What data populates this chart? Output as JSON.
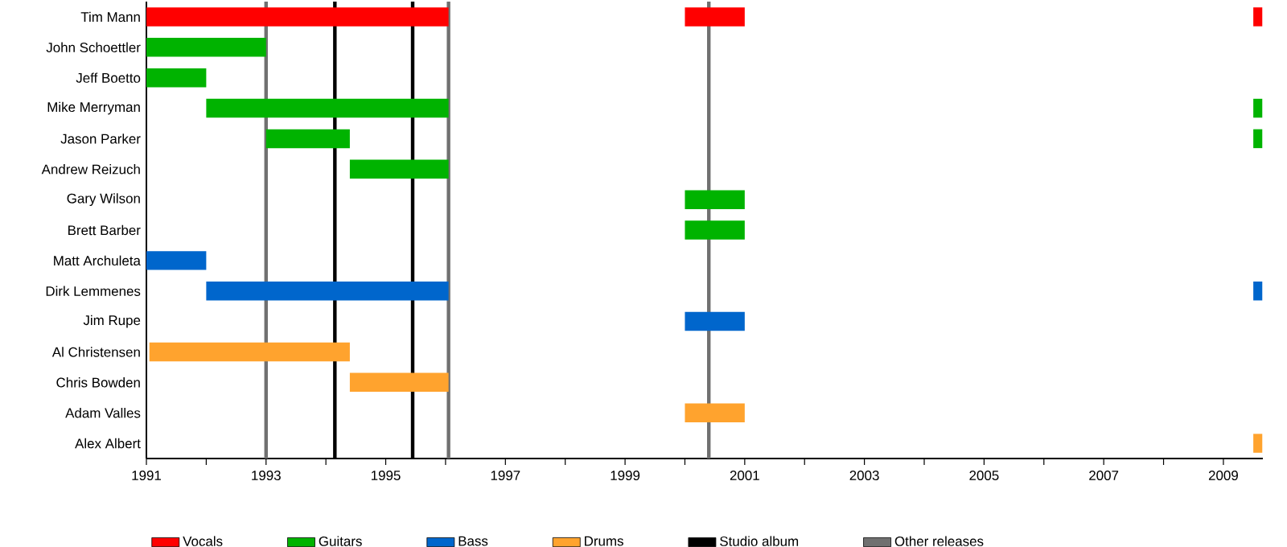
{
  "chart_data": {
    "type": "bar",
    "orientation": "horizontal",
    "categories": [
      "Tim Mann",
      "John Schoettler",
      "Jeff Boetto",
      "Mike Merryman",
      "Jason Parker",
      "Andrew Reizuch",
      "Gary Wilson",
      "Brett Barber",
      "Matt Archuleta",
      "Dirk Lemmenes",
      "Jim Rupe",
      "Al Christensen",
      "Chris Bowden",
      "Adam Valles",
      "Alex Albert"
    ],
    "series": [
      {
        "name": "Vocals",
        "color": "#ff0000",
        "base": [
          1991,
          null,
          null,
          null,
          null,
          null,
          null,
          null,
          null,
          null,
          null,
          null,
          null,
          null,
          null
        ],
        "values": [
          5.05,
          null,
          null,
          null,
          null,
          null,
          null,
          null,
          null,
          null,
          null,
          null,
          null,
          null,
          null
        ]
      },
      {
        "color": "#ff0000",
        "base": [
          2000,
          null,
          null,
          null,
          null,
          null,
          null,
          null,
          null,
          null,
          null,
          null,
          null,
          null,
          null
        ],
        "values": [
          1,
          null,
          null,
          null,
          null,
          null,
          null,
          null,
          null,
          null,
          null,
          null,
          null,
          null,
          null
        ]
      },
      {
        "color": "#ff0000",
        "base": [
          2009.5,
          null,
          null,
          null,
          null,
          null,
          null,
          null,
          null,
          null,
          null,
          null,
          null,
          null,
          null
        ],
        "values": [
          0.15,
          null,
          null,
          null,
          null,
          null,
          null,
          null,
          null,
          null,
          null,
          null,
          null,
          null,
          null
        ]
      },
      {
        "name": "Guitars",
        "color": "#00b300",
        "base": [
          null,
          1991,
          1991,
          1992,
          1993,
          1994.4,
          null,
          null,
          null,
          null,
          null,
          null,
          null,
          null,
          null
        ],
        "values": [
          null,
          2,
          1,
          4.05,
          1.4,
          1.65,
          null,
          null,
          null,
          null,
          null,
          null,
          null,
          null,
          null
        ]
      },
      {
        "color": "#00b300",
        "base": [
          null,
          null,
          null,
          null,
          null,
          null,
          2000,
          2000,
          null,
          null,
          null,
          null,
          null,
          null,
          null
        ],
        "values": [
          null,
          null,
          null,
          null,
          null,
          null,
          1,
          1,
          null,
          null,
          null,
          null,
          null,
          null,
          null
        ]
      },
      {
        "color": "#00b300",
        "base": [
          null,
          null,
          null,
          2009.5,
          2009.5,
          null,
          null,
          null,
          null,
          null,
          null,
          null,
          null,
          null,
          null
        ],
        "values": [
          null,
          null,
          null,
          0.15,
          0.15,
          null,
          null,
          null,
          null,
          null,
          null,
          null,
          null,
          null,
          null
        ]
      },
      {
        "name": "Bass",
        "color": "#0066cc",
        "base": [
          null,
          null,
          null,
          null,
          null,
          null,
          null,
          null,
          1991,
          1992,
          null,
          null,
          null,
          null,
          null
        ],
        "values": [
          null,
          null,
          null,
          null,
          null,
          null,
          null,
          null,
          1,
          4.05,
          null,
          null,
          null,
          null,
          null
        ]
      },
      {
        "color": "#0066cc",
        "base": [
          null,
          null,
          null,
          null,
          null,
          null,
          null,
          null,
          null,
          null,
          2000,
          null,
          null,
          null,
          null
        ],
        "values": [
          null,
          null,
          null,
          null,
          null,
          null,
          null,
          null,
          null,
          null,
          1,
          null,
          null,
          null,
          null
        ]
      },
      {
        "color": "#0066cc",
        "base": [
          null,
          null,
          null,
          null,
          null,
          null,
          null,
          null,
          null,
          2009.5,
          null,
          null,
          null,
          null,
          null
        ],
        "values": [
          null,
          null,
          null,
          null,
          null,
          null,
          null,
          null,
          null,
          0.15,
          null,
          null,
          null,
          null,
          null
        ]
      },
      {
        "name": "Drums",
        "color": "#ffa32e",
        "base": [
          null,
          null,
          null,
          null,
          null,
          null,
          null,
          null,
          null,
          null,
          null,
          1991.05,
          1994.4,
          null,
          null
        ],
        "values": [
          null,
          null,
          null,
          null,
          null,
          null,
          null,
          null,
          null,
          null,
          null,
          3.35,
          1.65,
          null,
          null
        ]
      },
      {
        "color": "#ffa32e",
        "base": [
          null,
          null,
          null,
          null,
          null,
          null,
          null,
          null,
          null,
          null,
          null,
          null,
          null,
          2000,
          null
        ],
        "values": [
          null,
          null,
          null,
          null,
          null,
          null,
          null,
          null,
          null,
          null,
          null,
          null,
          null,
          1,
          null
        ]
      },
      {
        "color": "#ffa32e",
        "base": [
          null,
          null,
          null,
          null,
          null,
          null,
          null,
          null,
          null,
          null,
          null,
          null,
          null,
          null,
          2009.5
        ],
        "values": [
          null,
          null,
          null,
          null,
          null,
          null,
          null,
          null,
          null,
          null,
          null,
          null,
          null,
          null,
          0.15
        ]
      }
    ],
    "ref_lines": [
      {
        "axis": "x",
        "value": 1994.15,
        "label": "Studio album",
        "color": "#000000"
      },
      {
        "axis": "x",
        "value": 1995.45,
        "color": "#000000"
      },
      {
        "axis": "x",
        "value": 1993,
        "label": "Other releases",
        "color": "#707070"
      },
      {
        "axis": "x",
        "value": 1996.05,
        "color": "#707070"
      },
      {
        "axis": "x",
        "value": 2000.4,
        "color": "#707070"
      }
    ],
    "xlim": [
      1991,
      2009.66
    ],
    "xticks": [
      1991,
      {
        "value": 1992,
        "label": null
      },
      1993,
      {
        "value": 1994,
        "label": null
      },
      1995,
      {
        "value": 1996,
        "label": null
      },
      1997,
      {
        "value": 1998,
        "label": null
      },
      1999,
      {
        "value": 2000,
        "label": null
      },
      2001,
      {
        "value": 2002,
        "label": null
      },
      2003,
      {
        "value": 2004,
        "label": null
      },
      2005,
      {
        "value": 2006,
        "label": null
      },
      2007,
      {
        "value": 2008,
        "label": null
      },
      2009
    ],
    "grid": false,
    "legend": "bottom"
  }
}
